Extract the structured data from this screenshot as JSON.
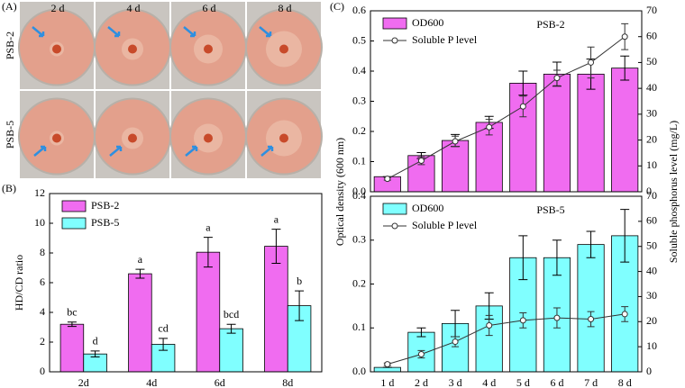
{
  "panel_a": {
    "label": "(A)",
    "columns": [
      "2 d",
      "4 d",
      "6 d",
      "8 d"
    ],
    "rows": [
      "PSB-2",
      "PSB-5"
    ]
  },
  "chart_data": [
    {
      "type": "bar",
      "label": "(B)",
      "ylabel": "HD/CD ratio",
      "categories": [
        "2d",
        "4d",
        "6d",
        "8d"
      ],
      "series": [
        {
          "name": "PSB-2",
          "color": "#f06cf0",
          "values": [
            3.2,
            6.6,
            8.05,
            8.45
          ],
          "errors": [
            0.15,
            0.3,
            1.0,
            1.15
          ],
          "letters": [
            "bc",
            "a",
            "a",
            "a"
          ]
        },
        {
          "name": "PSB-5",
          "color": "#80ffff",
          "values": [
            1.2,
            1.85,
            2.9,
            4.45
          ],
          "errors": [
            0.2,
            0.4,
            0.3,
            1.0
          ],
          "letters": [
            "d",
            "cd",
            "bcd",
            "b"
          ]
        }
      ],
      "ylim": [
        0,
        12
      ],
      "yticks": [
        0,
        2,
        4,
        6,
        8,
        10,
        12
      ],
      "legend": "upper left",
      "grid": false
    },
    {
      "type": "bar_line",
      "label": "(C)",
      "title": "PSB-2",
      "ylabel": "Optical density (600 nm)",
      "y2label": "Soluble phosphorus level (mg/L)",
      "series": [
        {
          "name": "OD600",
          "kind": "bar",
          "color": "#f06cf0",
          "values": [
            0.05,
            0.12,
            0.17,
            0.23,
            0.36,
            0.39,
            0.39,
            0.41
          ],
          "errors": [
            0,
            0.01,
            0.02,
            0.02,
            0.04,
            0.04,
            0.05,
            0.04
          ]
        },
        {
          "name": "Soluble P level",
          "kind": "line",
          "axis": "y2",
          "color": "#333333",
          "values": [
            5,
            12,
            19.5,
            25,
            33,
            44,
            50,
            60
          ],
          "errors": [
            0.5,
            1.5,
            2,
            3,
            4,
            3,
            6,
            5
          ]
        }
      ],
      "ylim": [
        0,
        0.6
      ],
      "yticks": [
        {
          "value": 0,
          "label": "0.0"
        },
        0.1,
        0.2,
        0.3,
        0.4,
        0.5,
        0.6
      ],
      "y2lim": [
        0,
        70
      ],
      "y2ticks": [
        0,
        10,
        20,
        30,
        40,
        50,
        60,
        70
      ],
      "legend": "upper left"
    },
    {
      "type": "bar_line",
      "title": "PSB-5",
      "categories": [
        "1 d",
        "2 d",
        "3 d",
        "4 d",
        "5 d",
        "6 d",
        "7 d",
        "8 d"
      ],
      "series": [
        {
          "name": "OD600",
          "kind": "bar",
          "color": "#80ffff",
          "values": [
            0.01,
            0.09,
            0.11,
            0.15,
            0.26,
            0.26,
            0.29,
            0.31
          ],
          "errors": [
            0,
            0.01,
            0.03,
            0.03,
            0.05,
            0.04,
            0.03,
            0.06
          ]
        },
        {
          "name": "Soluble P level",
          "kind": "line",
          "axis": "y2",
          "color": "#333333",
          "values": [
            3,
            7,
            12,
            18.5,
            20.5,
            21.5,
            21,
            23
          ],
          "errors": [
            0.5,
            1.5,
            2,
            4,
            3,
            4,
            3,
            3
          ]
        }
      ],
      "ylim": [
        0,
        0.4
      ],
      "yticks": [
        {
          "value": 0,
          "label": "0.0"
        },
        0.1,
        0.2,
        0.3,
        0.4
      ],
      "y2lim": [
        0,
        70
      ],
      "y2ticks": [
        0,
        10,
        20,
        30,
        40,
        50,
        60,
        70
      ],
      "legend": "upper left"
    }
  ]
}
